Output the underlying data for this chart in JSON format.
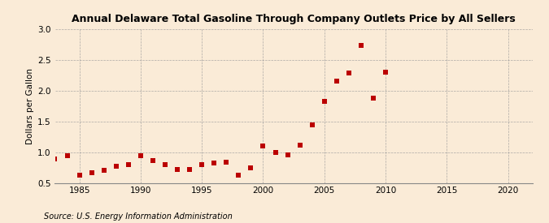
{
  "title": "Annual Delaware Total Gasoline Through Company Outlets Price by All Sellers",
  "ylabel": "Dollars per Gallon",
  "source": "Source: U.S. Energy Information Administration",
  "background_color": "#faebd7",
  "xlim": [
    1983,
    2022
  ],
  "ylim": [
    0.5,
    3.0
  ],
  "xticks": [
    1985,
    1990,
    1995,
    2000,
    2005,
    2010,
    2015,
    2020
  ],
  "yticks": [
    0.5,
    1.0,
    1.5,
    2.0,
    2.5,
    3.0
  ],
  "marker_color": "#bb0000",
  "marker_size": 18,
  "years": [
    1983,
    1984,
    1985,
    1986,
    1987,
    1988,
    1989,
    1990,
    1991,
    1992,
    1993,
    1994,
    1995,
    1996,
    1997,
    1998,
    1999,
    2000,
    2001,
    2002,
    2003,
    2004,
    2005,
    2006,
    2007,
    2008,
    2009,
    2010
  ],
  "values": [
    0.89,
    0.94,
    0.63,
    0.67,
    0.7,
    0.77,
    0.8,
    0.94,
    0.86,
    0.8,
    0.72,
    0.72,
    0.8,
    0.82,
    0.84,
    0.63,
    0.75,
    1.1,
    1.0,
    0.95,
    1.11,
    1.44,
    1.82,
    2.15,
    2.28,
    2.73,
    1.88,
    2.3
  ],
  "title_fontsize": 9,
  "ylabel_fontsize": 7.5,
  "tick_fontsize": 7.5,
  "source_fontsize": 7
}
